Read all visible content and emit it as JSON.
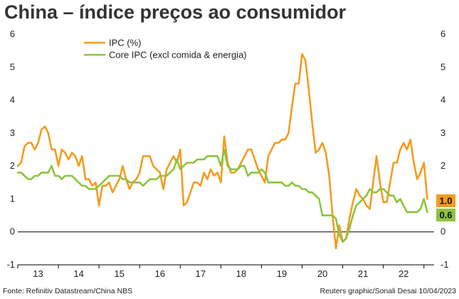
{
  "title": "China – índice preços ao consumidor",
  "footer": {
    "source": "Fonte: Refinitiv Datastream/China NBS",
    "credit": "Reuters graphic/Sonali Desai 10/04/2023"
  },
  "chart_data": {
    "type": "line",
    "title": "China – índice preços ao consumidor",
    "xlabel": "",
    "ylabel": "",
    "xlim": [
      2013.0,
      2023.25
    ],
    "ylim": [
      -1,
      6
    ],
    "y_ticks": [
      -1,
      0,
      1,
      2,
      3,
      4,
      5,
      6
    ],
    "x_tick_labels": [
      "13",
      "14",
      "15",
      "16",
      "17",
      "18",
      "19",
      "20",
      "21",
      "22"
    ],
    "x_tick_positions": [
      2013.5,
      2014.5,
      2015.5,
      2016.5,
      2017.5,
      2018.5,
      2019.5,
      2020.5,
      2021.5,
      2022.5
    ],
    "grid": false,
    "zero_line": true,
    "legend_position": "top-left",
    "series": [
      {
        "name": "IPC (%)",
        "color": "#f39c1f",
        "end_label": "1.0",
        "values": [
          [
            2013.0,
            2.0
          ],
          [
            2013.083,
            2.1
          ],
          [
            2013.167,
            2.6
          ],
          [
            2013.25,
            2.7
          ],
          [
            2013.333,
            2.7
          ],
          [
            2013.417,
            2.5
          ],
          [
            2013.5,
            2.7
          ],
          [
            2013.583,
            3.1
          ],
          [
            2013.667,
            3.2
          ],
          [
            2013.75,
            3.0
          ],
          [
            2013.833,
            2.5
          ],
          [
            2013.917,
            2.5
          ],
          [
            2014.0,
            2.0
          ],
          [
            2014.083,
            2.5
          ],
          [
            2014.167,
            2.4
          ],
          [
            2014.25,
            2.2
          ],
          [
            2014.333,
            2.4
          ],
          [
            2014.417,
            2.3
          ],
          [
            2014.5,
            2.0
          ],
          [
            2014.583,
            2.3
          ],
          [
            2014.667,
            1.6
          ],
          [
            2014.75,
            1.6
          ],
          [
            2014.833,
            1.4
          ],
          [
            2014.917,
            1.5
          ],
          [
            2015.0,
            0.8
          ],
          [
            2015.083,
            1.4
          ],
          [
            2015.167,
            1.4
          ],
          [
            2015.25,
            1.5
          ],
          [
            2015.333,
            1.2
          ],
          [
            2015.417,
            1.4
          ],
          [
            2015.5,
            1.6
          ],
          [
            2015.583,
            2.0
          ],
          [
            2015.667,
            1.6
          ],
          [
            2015.75,
            1.3
          ],
          [
            2015.833,
            1.5
          ],
          [
            2015.917,
            1.6
          ],
          [
            2016.0,
            1.8
          ],
          [
            2016.083,
            2.3
          ],
          [
            2016.167,
            2.3
          ],
          [
            2016.25,
            2.3
          ],
          [
            2016.333,
            2.0
          ],
          [
            2016.417,
            1.9
          ],
          [
            2016.5,
            1.8
          ],
          [
            2016.583,
            1.3
          ],
          [
            2016.667,
            1.9
          ],
          [
            2016.75,
            2.1
          ],
          [
            2016.833,
            2.3
          ],
          [
            2016.917,
            2.1
          ],
          [
            2017.0,
            2.5
          ],
          [
            2017.083,
            0.8
          ],
          [
            2017.167,
            0.9
          ],
          [
            2017.25,
            1.2
          ],
          [
            2017.333,
            1.5
          ],
          [
            2017.417,
            1.5
          ],
          [
            2017.5,
            1.4
          ],
          [
            2017.583,
            1.8
          ],
          [
            2017.667,
            1.6
          ],
          [
            2017.75,
            1.9
          ],
          [
            2017.833,
            1.7
          ],
          [
            2017.917,
            1.8
          ],
          [
            2018.0,
            1.5
          ],
          [
            2018.083,
            2.9
          ],
          [
            2018.167,
            2.1
          ],
          [
            2018.25,
            1.8
          ],
          [
            2018.333,
            1.8
          ],
          [
            2018.417,
            1.9
          ],
          [
            2018.5,
            2.1
          ],
          [
            2018.583,
            2.3
          ],
          [
            2018.667,
            2.5
          ],
          [
            2018.75,
            2.5
          ],
          [
            2018.833,
            2.2
          ],
          [
            2018.917,
            1.9
          ],
          [
            2019.0,
            1.7
          ],
          [
            2019.083,
            1.5
          ],
          [
            2019.167,
            2.3
          ],
          [
            2019.25,
            2.5
          ],
          [
            2019.333,
            2.7
          ],
          [
            2019.417,
            2.7
          ],
          [
            2019.5,
            2.8
          ],
          [
            2019.583,
            2.8
          ],
          [
            2019.667,
            3.0
          ],
          [
            2019.75,
            3.8
          ],
          [
            2019.833,
            4.5
          ],
          [
            2019.917,
            4.5
          ],
          [
            2020.0,
            5.4
          ],
          [
            2020.083,
            5.2
          ],
          [
            2020.167,
            4.3
          ],
          [
            2020.25,
            3.3
          ],
          [
            2020.333,
            2.4
          ],
          [
            2020.417,
            2.5
          ],
          [
            2020.5,
            2.7
          ],
          [
            2020.583,
            2.4
          ],
          [
            2020.667,
            1.7
          ],
          [
            2020.75,
            0.5
          ],
          [
            2020.833,
            -0.5
          ],
          [
            2020.917,
            0.2
          ],
          [
            2021.0,
            -0.3
          ],
          [
            2021.083,
            -0.2
          ],
          [
            2021.167,
            0.4
          ],
          [
            2021.25,
            0.9
          ],
          [
            2021.333,
            1.3
          ],
          [
            2021.417,
            1.1
          ],
          [
            2021.5,
            1.0
          ],
          [
            2021.583,
            0.8
          ],
          [
            2021.667,
            0.7
          ],
          [
            2021.75,
            1.5
          ],
          [
            2021.833,
            2.3
          ],
          [
            2021.917,
            1.5
          ],
          [
            2022.0,
            0.9
          ],
          [
            2022.083,
            0.9
          ],
          [
            2022.167,
            1.5
          ],
          [
            2022.25,
            2.1
          ],
          [
            2022.333,
            2.1
          ],
          [
            2022.417,
            2.5
          ],
          [
            2022.5,
            2.7
          ],
          [
            2022.583,
            2.5
          ],
          [
            2022.667,
            2.8
          ],
          [
            2022.75,
            2.1
          ],
          [
            2022.833,
            1.6
          ],
          [
            2022.917,
            1.8
          ],
          [
            2023.0,
            2.1
          ],
          [
            2023.083,
            1.0
          ]
        ]
      },
      {
        "name": "Core IPC (excl comida & energia)",
        "color": "#8cc43c",
        "end_label": "0.6",
        "values": [
          [
            2013.0,
            1.8
          ],
          [
            2013.083,
            1.8
          ],
          [
            2013.167,
            1.7
          ],
          [
            2013.25,
            1.6
          ],
          [
            2013.333,
            1.6
          ],
          [
            2013.417,
            1.7
          ],
          [
            2013.5,
            1.7
          ],
          [
            2013.583,
            1.8
          ],
          [
            2013.667,
            1.8
          ],
          [
            2013.75,
            1.8
          ],
          [
            2013.833,
            2.0
          ],
          [
            2013.917,
            1.7
          ],
          [
            2014.0,
            1.7
          ],
          [
            2014.083,
            1.6
          ],
          [
            2014.167,
            1.7
          ],
          [
            2014.25,
            1.7
          ],
          [
            2014.333,
            1.7
          ],
          [
            2014.417,
            1.6
          ],
          [
            2014.5,
            1.5
          ],
          [
            2014.583,
            1.4
          ],
          [
            2014.667,
            1.4
          ],
          [
            2014.75,
            1.3
          ],
          [
            2014.833,
            1.3
          ],
          [
            2014.917,
            1.3
          ],
          [
            2015.0,
            1.4
          ],
          [
            2015.083,
            1.5
          ],
          [
            2015.167,
            1.6
          ],
          [
            2015.25,
            1.7
          ],
          [
            2015.333,
            1.7
          ],
          [
            2015.417,
            1.7
          ],
          [
            2015.5,
            1.7
          ],
          [
            2015.583,
            1.6
          ],
          [
            2015.667,
            1.6
          ],
          [
            2015.75,
            1.5
          ],
          [
            2015.833,
            1.5
          ],
          [
            2015.917,
            1.5
          ],
          [
            2016.0,
            1.5
          ],
          [
            2016.083,
            1.4
          ],
          [
            2016.167,
            1.5
          ],
          [
            2016.25,
            1.6
          ],
          [
            2016.333,
            1.6
          ],
          [
            2016.417,
            1.6
          ],
          [
            2016.5,
            1.7
          ],
          [
            2016.583,
            1.7
          ],
          [
            2016.667,
            1.7
          ],
          [
            2016.75,
            1.8
          ],
          [
            2016.833,
            1.9
          ],
          [
            2016.917,
            2.2
          ],
          [
            2017.0,
            1.9
          ],
          [
            2017.083,
            2.0
          ],
          [
            2017.167,
            2.1
          ],
          [
            2017.25,
            2.1
          ],
          [
            2017.333,
            2.1
          ],
          [
            2017.417,
            2.2
          ],
          [
            2017.5,
            2.2
          ],
          [
            2017.583,
            2.2
          ],
          [
            2017.667,
            2.3
          ],
          [
            2017.75,
            2.3
          ],
          [
            2017.833,
            2.3
          ],
          [
            2017.917,
            2.3
          ],
          [
            2018.0,
            2.0
          ],
          [
            2018.083,
            2.5
          ],
          [
            2018.167,
            2.0
          ],
          [
            2018.25,
            1.9
          ],
          [
            2018.333,
            1.9
          ],
          [
            2018.417,
            1.9
          ],
          [
            2018.5,
            2.0
          ],
          [
            2018.583,
            2.0
          ],
          [
            2018.667,
            1.7
          ],
          [
            2018.75,
            1.8
          ],
          [
            2018.833,
            1.8
          ],
          [
            2018.917,
            1.8
          ],
          [
            2019.0,
            1.9
          ],
          [
            2019.083,
            1.8
          ],
          [
            2019.167,
            1.5
          ],
          [
            2019.25,
            1.5
          ],
          [
            2019.333,
            1.5
          ],
          [
            2019.417,
            1.5
          ],
          [
            2019.5,
            1.5
          ],
          [
            2019.583,
            1.4
          ],
          [
            2019.667,
            1.4
          ],
          [
            2019.75,
            1.5
          ],
          [
            2019.833,
            1.4
          ],
          [
            2019.917,
            1.4
          ],
          [
            2020.0,
            1.3
          ],
          [
            2020.083,
            1.3
          ],
          [
            2020.167,
            1.2
          ],
          [
            2020.25,
            1.2
          ],
          [
            2020.333,
            1.1
          ],
          [
            2020.417,
            1.0
          ],
          [
            2020.5,
            0.5
          ],
          [
            2020.583,
            0.5
          ],
          [
            2020.667,
            0.5
          ],
          [
            2020.75,
            0.5
          ],
          [
            2020.833,
            0.4
          ],
          [
            2020.917,
            -0.1
          ],
          [
            2021.0,
            -0.3
          ],
          [
            2021.083,
            -0.2
          ],
          [
            2021.167,
            0.1
          ],
          [
            2021.25,
            0.5
          ],
          [
            2021.333,
            0.8
          ],
          [
            2021.417,
            0.9
          ],
          [
            2021.5,
            1.0
          ],
          [
            2021.583,
            1.1
          ],
          [
            2021.667,
            1.3
          ],
          [
            2021.75,
            1.2
          ],
          [
            2021.833,
            1.2
          ],
          [
            2021.917,
            1.3
          ],
          [
            2022.0,
            1.3
          ],
          [
            2022.083,
            1.2
          ],
          [
            2022.167,
            1.1
          ],
          [
            2022.25,
            1.1
          ],
          [
            2022.333,
            0.9
          ],
          [
            2022.417,
            1.0
          ],
          [
            2022.5,
            0.8
          ],
          [
            2022.583,
            0.6
          ],
          [
            2022.667,
            0.6
          ],
          [
            2022.75,
            0.6
          ],
          [
            2022.833,
            0.6
          ],
          [
            2022.917,
            0.7
          ],
          [
            2023.0,
            1.0
          ],
          [
            2023.083,
            0.6
          ]
        ]
      }
    ]
  }
}
